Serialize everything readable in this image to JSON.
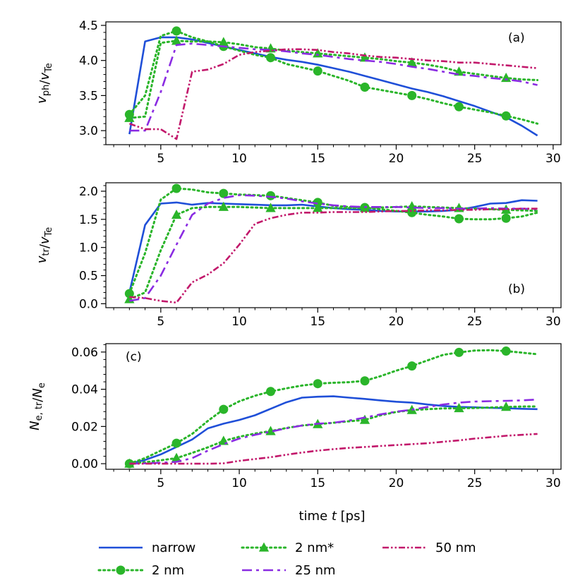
{
  "chart_data": [
    {
      "type": "line",
      "panel_label": "(a)",
      "ylabel": {
        "main": "v",
        "sub": "ph",
        "sep": "/",
        "main2": "v",
        "sub2": "Te"
      },
      "xlim": [
        1.5,
        30.5
      ],
      "ylim": [
        2.8,
        4.55
      ],
      "xticks": [
        5,
        10,
        15,
        20,
        25,
        30
      ],
      "xtick_labels": [
        "5",
        "10",
        "15",
        "20",
        "25",
        "30"
      ],
      "yticks": [
        3.0,
        3.5,
        4.0,
        4.5
      ],
      "ytick_labels": [
        "3.0",
        "3.5",
        "4.0",
        "4.5"
      ],
      "series": [
        {
          "name": "narrow",
          "x": [
            3,
            4,
            5,
            6,
            7,
            8,
            9,
            10,
            11,
            12,
            13,
            14,
            15,
            16,
            17,
            18,
            19,
            20,
            21,
            22,
            23,
            24,
            25,
            26,
            27,
            28,
            29
          ],
          "y": [
            2.95,
            4.27,
            4.33,
            4.33,
            4.3,
            4.25,
            4.2,
            4.15,
            4.1,
            4.05,
            4.01,
            3.98,
            3.94,
            3.89,
            3.84,
            3.78,
            3.72,
            3.66,
            3.6,
            3.55,
            3.49,
            3.42,
            3.35,
            3.27,
            3.19,
            3.07,
            2.93
          ]
        },
        {
          "name": "2 nm",
          "x": [
            3,
            4,
            5,
            6,
            7,
            8,
            9,
            10,
            11,
            12,
            13,
            14,
            15,
            16,
            17,
            18,
            19,
            20,
            21,
            22,
            23,
            24,
            25,
            26,
            27,
            28,
            29
          ],
          "y": [
            3.23,
            3.5,
            4.35,
            4.42,
            4.33,
            4.27,
            4.2,
            4.14,
            4.08,
            4.04,
            3.95,
            3.9,
            3.85,
            3.78,
            3.71,
            3.62,
            3.58,
            3.54,
            3.5,
            3.45,
            3.39,
            3.34,
            3.3,
            3.26,
            3.21,
            3.16,
            3.1
          ]
        },
        {
          "name": "2 nm*",
          "x": [
            3,
            4,
            5,
            6,
            7,
            8,
            9,
            10,
            11,
            12,
            13,
            14,
            15,
            16,
            17,
            18,
            19,
            20,
            21,
            22,
            23,
            24,
            25,
            26,
            27,
            28,
            29
          ],
          "y": [
            3.18,
            3.2,
            4.25,
            4.28,
            4.27,
            4.27,
            4.26,
            4.23,
            4.19,
            4.17,
            4.14,
            4.12,
            4.1,
            4.08,
            4.06,
            4.04,
            4.02,
            3.99,
            3.97,
            3.94,
            3.9,
            3.84,
            3.81,
            3.78,
            3.75,
            3.73,
            3.72
          ]
        },
        {
          "name": "25 nm",
          "x": [
            3,
            4,
            5,
            6,
            7,
            8,
            9,
            10,
            11,
            12,
            13,
            14,
            15,
            16,
            17,
            18,
            19,
            20,
            21,
            22,
            23,
            24,
            25,
            26,
            27,
            28,
            29
          ],
          "y": [
            3.0,
            3.0,
            3.55,
            4.22,
            4.24,
            4.22,
            4.2,
            4.18,
            4.16,
            4.15,
            4.13,
            4.1,
            4.08,
            4.05,
            4.02,
            4.0,
            3.98,
            3.95,
            3.91,
            3.88,
            3.84,
            3.8,
            3.78,
            3.75,
            3.73,
            3.7,
            3.65
          ]
        },
        {
          "name": "50 nm",
          "x": [
            3,
            4,
            5,
            6,
            7,
            8,
            9,
            10,
            11,
            12,
            13,
            14,
            15,
            16,
            17,
            18,
            19,
            20,
            21,
            22,
            23,
            24,
            25,
            26,
            27,
            28,
            29
          ],
          "y": [
            3.1,
            3.02,
            3.02,
            2.88,
            3.84,
            3.87,
            3.95,
            4.08,
            4.12,
            4.14,
            4.16,
            4.16,
            4.15,
            4.12,
            4.1,
            4.07,
            4.05,
            4.04,
            4.02,
            4.0,
            3.99,
            3.97,
            3.97,
            3.95,
            3.93,
            3.91,
            3.89
          ]
        }
      ]
    },
    {
      "type": "line",
      "panel_label": "(b)",
      "ylabel": {
        "main": "v",
        "sub": "tr",
        "sep": "/",
        "main2": "v",
        "sub2": "Te"
      },
      "xlim": [
        1.5,
        30.5
      ],
      "ylim": [
        -0.07,
        2.15
      ],
      "xticks": [
        5,
        10,
        15,
        20,
        25,
        30
      ],
      "xtick_labels": [
        "5",
        "10",
        "15",
        "20",
        "25",
        "30"
      ],
      "yticks": [
        0.0,
        0.5,
        1.0,
        1.5,
        2.0
      ],
      "ytick_labels": [
        "0.0",
        "0.5",
        "1.0",
        "1.5",
        "2.0"
      ],
      "series": [
        {
          "name": "narrow",
          "x": [
            3,
            4,
            5,
            6,
            7,
            8,
            9,
            10,
            11,
            12,
            13,
            14,
            15,
            16,
            17,
            18,
            19,
            20,
            21,
            22,
            23,
            24,
            25,
            26,
            27,
            28,
            29
          ],
          "y": [
            0.2,
            1.4,
            1.78,
            1.8,
            1.76,
            1.79,
            1.78,
            1.77,
            1.76,
            1.75,
            1.75,
            1.76,
            1.73,
            1.7,
            1.68,
            1.67,
            1.65,
            1.64,
            1.64,
            1.64,
            1.65,
            1.67,
            1.72,
            1.78,
            1.79,
            1.84,
            1.83
          ]
        },
        {
          "name": "2 nm",
          "x": [
            3,
            4,
            5,
            6,
            7,
            8,
            9,
            10,
            11,
            12,
            13,
            14,
            15,
            16,
            17,
            18,
            19,
            20,
            21,
            22,
            23,
            24,
            25,
            26,
            27,
            28,
            29
          ],
          "y": [
            0.18,
            0.9,
            1.85,
            2.05,
            2.03,
            1.98,
            1.96,
            1.94,
            1.93,
            1.92,
            1.88,
            1.84,
            1.8,
            1.74,
            1.72,
            1.71,
            1.68,
            1.65,
            1.62,
            1.58,
            1.55,
            1.51,
            1.5,
            1.5,
            1.52,
            1.55,
            1.62
          ]
        },
        {
          "name": "2 nm*",
          "x": [
            3,
            4,
            5,
            6,
            7,
            8,
            9,
            10,
            11,
            12,
            13,
            14,
            15,
            16,
            17,
            18,
            19,
            20,
            21,
            22,
            23,
            24,
            25,
            26,
            27,
            28,
            29
          ],
          "y": [
            0.08,
            0.2,
            0.95,
            1.58,
            1.7,
            1.72,
            1.72,
            1.72,
            1.71,
            1.7,
            1.7,
            1.7,
            1.7,
            1.7,
            1.7,
            1.7,
            1.71,
            1.72,
            1.73,
            1.72,
            1.71,
            1.7,
            1.69,
            1.68,
            1.67,
            1.66,
            1.65
          ]
        },
        {
          "name": "25 nm",
          "x": [
            3,
            4,
            5,
            6,
            7,
            8,
            9,
            10,
            11,
            12,
            13,
            14,
            15,
            16,
            17,
            18,
            19,
            20,
            21,
            22,
            23,
            24,
            25,
            26,
            27,
            28,
            29
          ],
          "y": [
            0.05,
            0.1,
            0.5,
            1.05,
            1.58,
            1.78,
            1.88,
            1.93,
            1.92,
            1.9,
            1.87,
            1.82,
            1.78,
            1.75,
            1.73,
            1.72,
            1.72,
            1.72,
            1.71,
            1.7,
            1.7,
            1.69,
            1.69,
            1.7,
            1.69,
            1.69,
            1.68
          ]
        },
        {
          "name": "50 nm",
          "x": [
            3,
            4,
            5,
            6,
            7,
            8,
            9,
            10,
            11,
            12,
            13,
            14,
            15,
            16,
            17,
            18,
            19,
            20,
            21,
            22,
            23,
            24,
            25,
            26,
            27,
            28,
            29
          ],
          "y": [
            0.12,
            0.1,
            0.05,
            0.02,
            0.38,
            0.52,
            0.72,
            1.05,
            1.42,
            1.52,
            1.58,
            1.62,
            1.62,
            1.63,
            1.63,
            1.63,
            1.64,
            1.65,
            1.65,
            1.66,
            1.66,
            1.67,
            1.67,
            1.68,
            1.68,
            1.69,
            1.69
          ]
        }
      ]
    },
    {
      "type": "line",
      "panel_label": "(c)",
      "ylabel": {
        "main": "N",
        "sub": "e, tr",
        "sep": "/",
        "main2": "N",
        "sub2": "e"
      },
      "xlabel": {
        "text": "time ",
        "italic": "t",
        "unit": " [ps]"
      },
      "xlim": [
        1.5,
        30.5
      ],
      "ylim": [
        -0.003,
        0.0645
      ],
      "xticks": [
        5,
        10,
        15,
        20,
        25,
        30
      ],
      "xtick_labels": [
        "5",
        "10",
        "15",
        "20",
        "25",
        "30"
      ],
      "yticks": [
        0.0,
        0.02,
        0.04,
        0.06
      ],
      "ytick_labels": [
        "0.00",
        "0.02",
        "0.04",
        "0.06"
      ],
      "series": [
        {
          "name": "narrow",
          "x": [
            3,
            4,
            5,
            6,
            7,
            8,
            9,
            10,
            11,
            12,
            13,
            14,
            15,
            16,
            17,
            18,
            19,
            20,
            21,
            22,
            23,
            24,
            25,
            26,
            27,
            28,
            29
          ],
          "y": [
            0.0,
            0.002,
            0.005,
            0.009,
            0.013,
            0.019,
            0.0215,
            0.0235,
            0.026,
            0.0295,
            0.033,
            0.0355,
            0.036,
            0.0362,
            0.0355,
            0.0348,
            0.034,
            0.0333,
            0.0328,
            0.0318,
            0.031,
            0.0305,
            0.0303,
            0.03,
            0.0298,
            0.0295,
            0.0293
          ]
        },
        {
          "name": "2 nm",
          "x": [
            3,
            4,
            5,
            6,
            7,
            8,
            9,
            10,
            11,
            12,
            13,
            14,
            15,
            16,
            17,
            18,
            19,
            20,
            21,
            22,
            23,
            24,
            25,
            26,
            27,
            28,
            29
          ],
          "y": [
            0.0,
            0.003,
            0.007,
            0.011,
            0.016,
            0.023,
            0.0292,
            0.0335,
            0.0365,
            0.0388,
            0.0405,
            0.042,
            0.043,
            0.0435,
            0.0438,
            0.0445,
            0.047,
            0.05,
            0.0525,
            0.0555,
            0.0585,
            0.0598,
            0.0608,
            0.061,
            0.0605,
            0.0597,
            0.0588
          ]
        },
        {
          "name": "2 nm*",
          "x": [
            3,
            4,
            5,
            6,
            7,
            8,
            9,
            10,
            11,
            12,
            13,
            14,
            15,
            16,
            17,
            18,
            19,
            20,
            21,
            22,
            23,
            24,
            25,
            26,
            27,
            28,
            29
          ],
          "y": [
            0.0,
            0.0008,
            0.0018,
            0.003,
            0.0058,
            0.0088,
            0.0122,
            0.0145,
            0.0162,
            0.0175,
            0.0192,
            0.0205,
            0.0212,
            0.022,
            0.0228,
            0.0235,
            0.026,
            0.0278,
            0.0288,
            0.0293,
            0.0297,
            0.0298,
            0.0299,
            0.0302,
            0.0305,
            0.0307,
            0.0308
          ]
        },
        {
          "name": "25 nm",
          "x": [
            3,
            4,
            5,
            6,
            7,
            8,
            9,
            10,
            11,
            12,
            13,
            14,
            15,
            16,
            17,
            18,
            19,
            20,
            21,
            22,
            23,
            24,
            25,
            26,
            27,
            28,
            29
          ],
          "y": [
            0.0,
            0.0002,
            0.0005,
            0.001,
            0.003,
            0.007,
            0.0105,
            0.0135,
            0.0155,
            0.0172,
            0.019,
            0.0205,
            0.0215,
            0.022,
            0.0232,
            0.0248,
            0.0265,
            0.028,
            0.029,
            0.0305,
            0.0318,
            0.0328,
            0.0334,
            0.0336,
            0.0338,
            0.034,
            0.0345
          ]
        },
        {
          "name": "50 nm",
          "x": [
            3,
            4,
            5,
            6,
            7,
            8,
            9,
            10,
            11,
            12,
            13,
            14,
            15,
            16,
            17,
            18,
            19,
            20,
            21,
            22,
            23,
            24,
            25,
            26,
            27,
            28,
            29
          ],
          "y": [
            0.0,
            0.0,
            0.0,
            0.0,
            0.0,
            0.0,
            0.0002,
            0.0015,
            0.0025,
            0.0035,
            0.0048,
            0.006,
            0.007,
            0.0078,
            0.0085,
            0.009,
            0.0095,
            0.01,
            0.0105,
            0.011,
            0.0118,
            0.0125,
            0.0135,
            0.0142,
            0.015,
            0.0155,
            0.016
          ]
        }
      ]
    }
  ],
  "legend": {
    "placement": "bottom",
    "entries": [
      {
        "name": "narrow",
        "label": "narrow"
      },
      {
        "name": "2 nm",
        "label": "2 nm"
      },
      {
        "name": "2 nm*",
        "label": "2 nm*"
      },
      {
        "name": "25 nm",
        "label": "25 nm"
      },
      {
        "name": "50 nm",
        "label": "50 nm"
      }
    ]
  },
  "series_styles": {
    "narrow": {
      "color": "#1f4fd8",
      "dash": "",
      "marker": "none",
      "marker_x": []
    },
    "2 nm": {
      "color": "#2ab52a",
      "dash": "2.2,4.4",
      "marker": "circle",
      "marker_x": [
        3,
        6,
        9,
        12,
        15,
        18,
        21,
        24,
        27
      ]
    },
    "2 nm*": {
      "color": "#2ab52a",
      "dash": "2.2,4.4",
      "marker": "triangle",
      "marker_x": [
        3,
        6,
        9,
        12,
        15,
        18,
        21,
        24,
        27
      ]
    },
    "25 nm": {
      "color": "#8a2be2",
      "dash": "14,6,4,6",
      "marker": "none",
      "marker_x": []
    },
    "50 nm": {
      "color": "#c2186b",
      "dash": "9,3,2.5,3,2.5,3",
      "marker": "none",
      "marker_x": []
    }
  }
}
